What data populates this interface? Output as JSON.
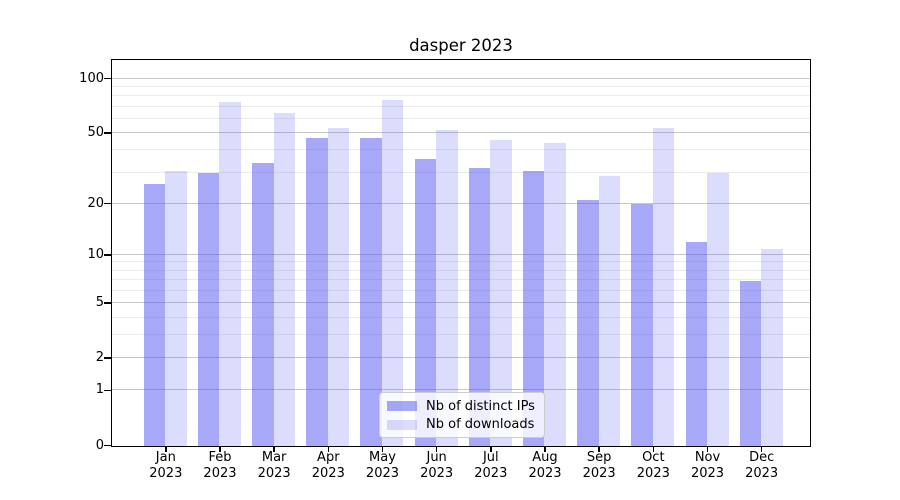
{
  "chart_data": {
    "type": "bar",
    "title": "dasper 2023",
    "categories": [
      "Jan",
      "Feb",
      "Mar",
      "Apr",
      "May",
      "Jun",
      "Jul",
      "Aug",
      "Sep",
      "Oct",
      "Nov",
      "Dec"
    ],
    "year": "2023",
    "series": [
      {
        "name": "Nb of distinct IPs",
        "values": [
          26,
          30,
          34,
          47,
          47,
          36,
          32,
          31,
          21,
          20,
          12,
          7
        ]
      },
      {
        "name": "Nb of downloads",
        "values": [
          31,
          75,
          65,
          54,
          77,
          52,
          46,
          44,
          29,
          54,
          30,
          11
        ]
      }
    ],
    "xlabel": "",
    "ylabel": "",
    "yscale": "log1p",
    "ylim": [
      0,
      126
    ],
    "yticks": [
      100,
      50,
      20,
      10,
      5,
      2,
      1,
      0
    ],
    "yticks_minor": [
      3,
      4,
      6,
      7,
      8,
      9,
      30,
      40,
      60,
      70,
      80,
      90
    ],
    "grid": "horizontal-major-and-minor",
    "legend_position": "lower center",
    "colors": {
      "bar_base": "#5151f1",
      "ips_alpha": 0.5,
      "downloads_alpha": 0.2,
      "grid_major": "#c8c8c8",
      "grid_minor": "#ebebeb",
      "spine": "#000000",
      "text": "#000000"
    }
  }
}
